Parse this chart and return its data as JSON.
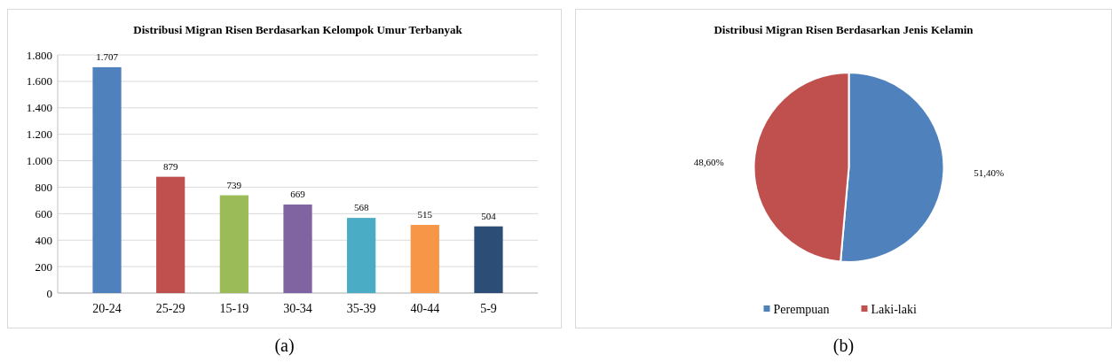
{
  "chart_data": [
    {
      "type": "bar",
      "title": "Distribusi Migran Risen Berdasarkan Kelompok Umur Terbanyak",
      "categories": [
        "20-24",
        "25-29",
        "15-19",
        "30-34",
        "35-39",
        "40-44",
        "5-9"
      ],
      "values": [
        1707,
        879,
        739,
        669,
        568,
        515,
        504
      ],
      "colors": [
        "#4f81bd",
        "#c0504d",
        "#9bbb59",
        "#8064a2",
        "#4bacc6",
        "#f79646",
        "#2c4d75"
      ],
      "value_labels": [
        "1.707",
        "879",
        "739",
        "669",
        "568",
        "515",
        "504"
      ],
      "ylim": [
        0,
        1800
      ],
      "yticks": [
        0,
        200,
        400,
        600,
        800,
        {
          "value": 1000,
          "label": "1.000"
        },
        {
          "value": 1200,
          "label": "1.200"
        },
        {
          "value": 1400,
          "label": "1.400"
        },
        {
          "value": 1600,
          "label": "1.600"
        },
        {
          "value": 1800,
          "label": "1.800"
        }
      ],
      "grid": "y",
      "annotations": [
        "(a)"
      ]
    },
    {
      "type": "pie",
      "title": "Distribusi Migran Risen Berdasarkan Jenis Kelamin",
      "categories": [
        "Perempuan",
        "Laki-laki"
      ],
      "values": [
        51.4,
        48.6
      ],
      "colors": [
        "#4f81bd",
        "#c0504d"
      ],
      "value_labels": [
        "51,40%",
        "48,60%"
      ],
      "legend": "bottom",
      "annotations": [
        "(b)"
      ]
    }
  ]
}
